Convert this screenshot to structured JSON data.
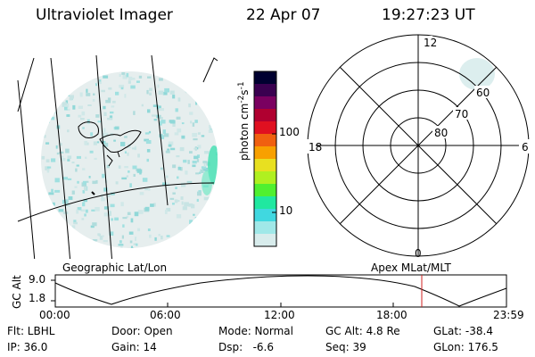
{
  "header": {
    "title": "Ultraviolet Imager",
    "date": "22 Apr 07",
    "time": "19:27:23 UT"
  },
  "colorbar": {
    "unit_label": "photon cm",
    "unit_sup1": "-2",
    "unit_s": "s",
    "unit_sup2": "-1",
    "ticks": [
      "100",
      "10"
    ],
    "colors": [
      "#000030",
      "#3a0050",
      "#7a0060",
      "#b00030",
      "#e01020",
      "#f06010",
      "#f8a000",
      "#e8e020",
      "#b0f020",
      "#50f030",
      "#20e8a0",
      "#40d8e0",
      "#a0e8e8",
      "#d8ecec"
    ]
  },
  "polar_plot": {
    "mlt_labels": {
      "top": "12",
      "left": "18",
      "right": "6",
      "bottom": "0"
    },
    "lat_labels": [
      "60",
      "70",
      "80"
    ]
  },
  "timeline": {
    "left_title": "Geographic Lat/Lon",
    "right_title": "Apex MLat/MLT",
    "axis_label": "GC Alt",
    "y_ticks": [
      "9.0",
      "1.8"
    ],
    "x_ticks": [
      "00:00",
      "06:00",
      "12:00",
      "18:00",
      "23:59"
    ]
  },
  "info": {
    "flt": "Flt: LBHL",
    "ip": "IP: 36.0",
    "door": "Door: Open",
    "gain": "Gain: 14",
    "mode": "Mode: Normal",
    "dsp": "Dsp:   -6.6",
    "gcalt": "GC Alt: 4.8 Re",
    "seq": "Seq: 39",
    "glat": "GLat: -38.4",
    "glon": "GLon: 176.5"
  },
  "colors": {
    "marker": "#d02020",
    "aurora": "#30e0a0",
    "speckle": "#a8d8d8"
  }
}
